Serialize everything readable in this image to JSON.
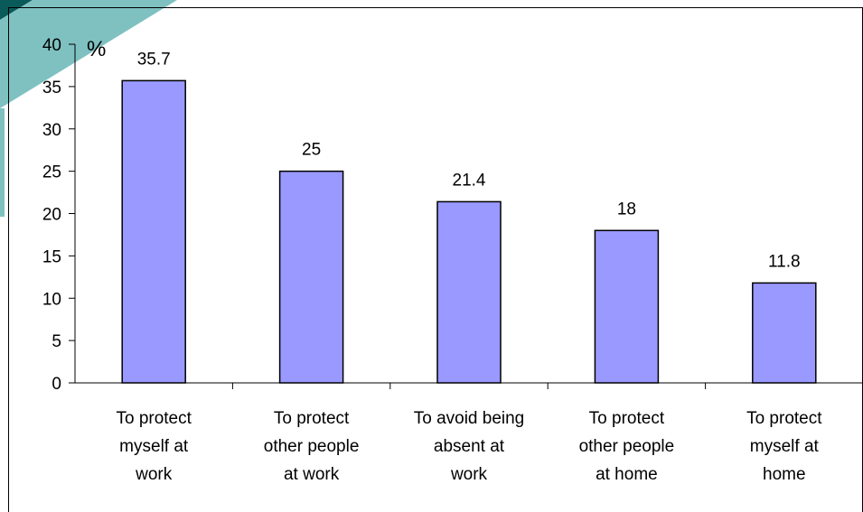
{
  "colors": {
    "bar_fill": "#9999ff",
    "bar_stroke": "#000000",
    "slide_accent_dark": "#0b5a5a",
    "slide_accent_light": "#7fc1c1",
    "frame": "#000000"
  },
  "chart_data": {
    "type": "bar",
    "title": "",
    "xlabel": "",
    "ylabel": "",
    "unit_label": "%",
    "ylim": [
      0,
      40
    ],
    "yticks": [
      0,
      5,
      10,
      15,
      20,
      25,
      30,
      35,
      40
    ],
    "grid": false,
    "legend": "none",
    "categories": [
      [
        "To protect",
        "myself at",
        "work"
      ],
      [
        "To protect",
        "other people",
        "at work"
      ],
      [
        "To avoid being",
        "absent at",
        "work"
      ],
      [
        "To protect",
        "other people",
        "at home"
      ],
      [
        "To protect",
        "myself at",
        "home"
      ]
    ],
    "values": [
      35.7,
      25,
      21.4,
      18,
      11.8
    ],
    "data_labels": [
      "35.7",
      "25",
      "21.4",
      "18",
      "11.8"
    ]
  }
}
